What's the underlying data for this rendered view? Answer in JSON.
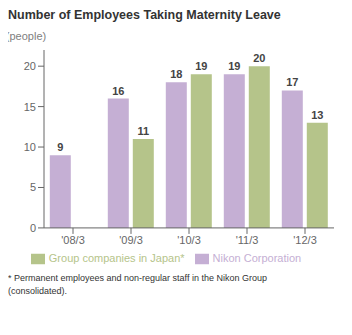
{
  "chart_data": {
    "type": "bar",
    "title": "Number of Employees Taking Maternity Leave",
    "y_label": "(people)",
    "categories": [
      "'08/3",
      "'09/3",
      "'10/3",
      "'11/3",
      "'12/3"
    ],
    "series": [
      {
        "name": "Nikon Corporation",
        "color": "#c5afd4",
        "values": [
          9,
          16,
          18,
          19,
          17
        ]
      },
      {
        "name": "Group companies in Japan*",
        "color": "#b5c48a",
        "values": [
          null,
          11,
          19,
          20,
          13
        ]
      }
    ],
    "ylim": [
      0,
      22
    ],
    "yticks": [
      0,
      5,
      10,
      15,
      20
    ],
    "grid": false,
    "legend": "bottom",
    "data_labels": true,
    "annotations": [
      "* Permanent employees and non-regular staff in the Nikon Group",
      "(consolidated)."
    ]
  }
}
